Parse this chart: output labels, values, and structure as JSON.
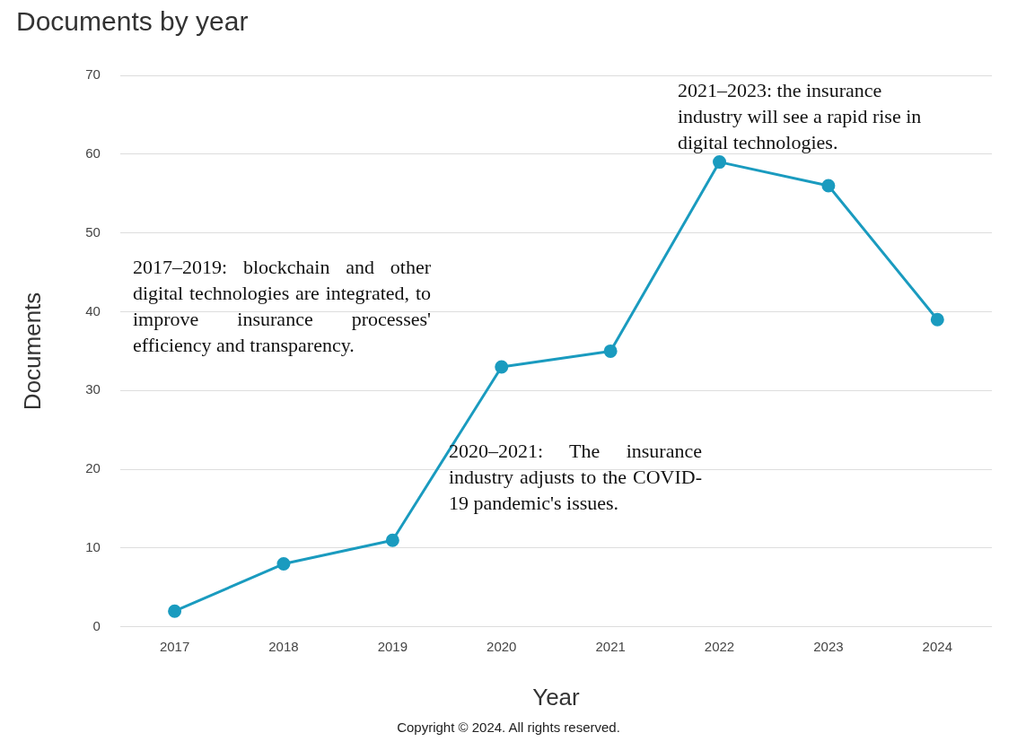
{
  "chart_data": {
    "type": "line",
    "title": "Documents by year",
    "xlabel": "Year",
    "ylabel": "Documents",
    "categories": [
      "2017",
      "2018",
      "2019",
      "2020",
      "2021",
      "2022",
      "2023",
      "2024"
    ],
    "series": [
      {
        "color": "#1a9bbf",
        "values": [
          2,
          8,
          11,
          33,
          35,
          59,
          56,
          39
        ]
      }
    ],
    "ylim": [
      0,
      70
    ],
    "yticks": [
      0,
      10,
      20,
      30,
      40,
      50,
      60,
      70
    ],
    "grid": "y",
    "legend": false,
    "marker": "circle",
    "line_style": "solid",
    "annotations": [
      "2017–2019: blockchain and other digital technologies are integrated, to improve insurance processes' efficiency and transparency.",
      "2020–2021: The insurance industry adjusts to the COVID-19 pandemic's issues.",
      "2021–2023: the insurance industry will see a rapid rise in digital technologies.",
      "Copyright © 2024. All rights reserved."
    ]
  }
}
